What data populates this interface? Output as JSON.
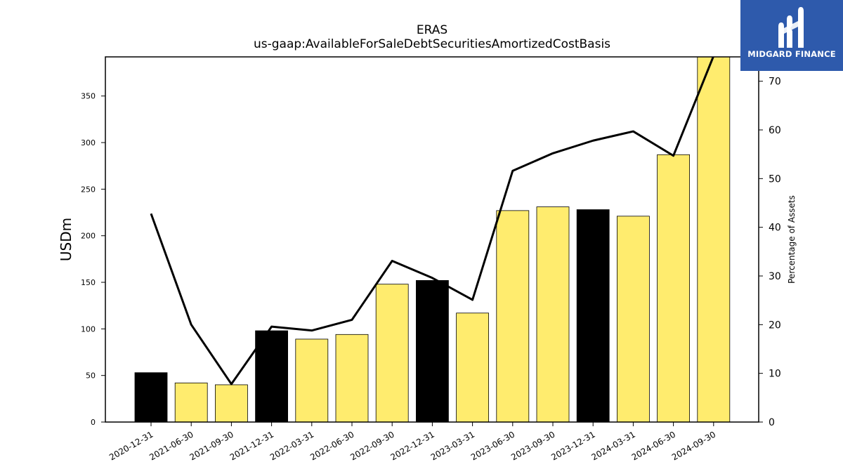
{
  "brand": {
    "name": "MIDGARD FINANCE",
    "bg_color": "#2e5aac"
  },
  "chart_data": {
    "type": "bar",
    "title": "ERAS",
    "subtitle": "us-gaap:AvailableForSaleDebtSecuritiesAmortizedCostBasis",
    "ylabel": "USDm",
    "y2label": "Percentage of Assets",
    "ylim": [
      0,
      392
    ],
    "y2lim": [
      0,
      75
    ],
    "yticks": [
      0,
      50,
      100,
      150,
      200,
      250,
      300,
      350
    ],
    "y2ticks": [
      0,
      10,
      20,
      30,
      40,
      50,
      60,
      70
    ],
    "categories": [
      "2020-12-31",
      "2021-06-30",
      "2021-09-30",
      "2021-12-31",
      "2022-03-31",
      "2022-06-30",
      "2022-09-30",
      "2022-12-31",
      "2023-03-31",
      "2023-06-30",
      "2023-09-30",
      "2023-12-31",
      "2024-03-31",
      "2024-06-30",
      "2024-09-30"
    ],
    "series": [
      {
        "type": "bar",
        "axis": "left",
        "values": [
          53,
          42,
          40,
          98,
          89,
          94,
          148,
          152,
          117,
          227,
          231,
          228,
          221,
          287,
          400
        ],
        "colors": [
          "#000000",
          "#ffec6e",
          "#ffec6e",
          "#000000",
          "#ffec6e",
          "#ffec6e",
          "#ffec6e",
          "#000000",
          "#ffec6e",
          "#ffec6e",
          "#ffec6e",
          "#000000",
          "#ffec6e",
          "#ffec6e",
          "#ffec6e"
        ]
      },
      {
        "type": "line",
        "axis": "right",
        "color": "#000000",
        "values": [
          42.8,
          20.0,
          7.8,
          19.6,
          18.8,
          21.0,
          33.1,
          29.6,
          25.1,
          51.6,
          55.2,
          57.8,
          59.7,
          54.7,
          75.2
        ]
      }
    ],
    "grid": false,
    "legend": "none"
  }
}
